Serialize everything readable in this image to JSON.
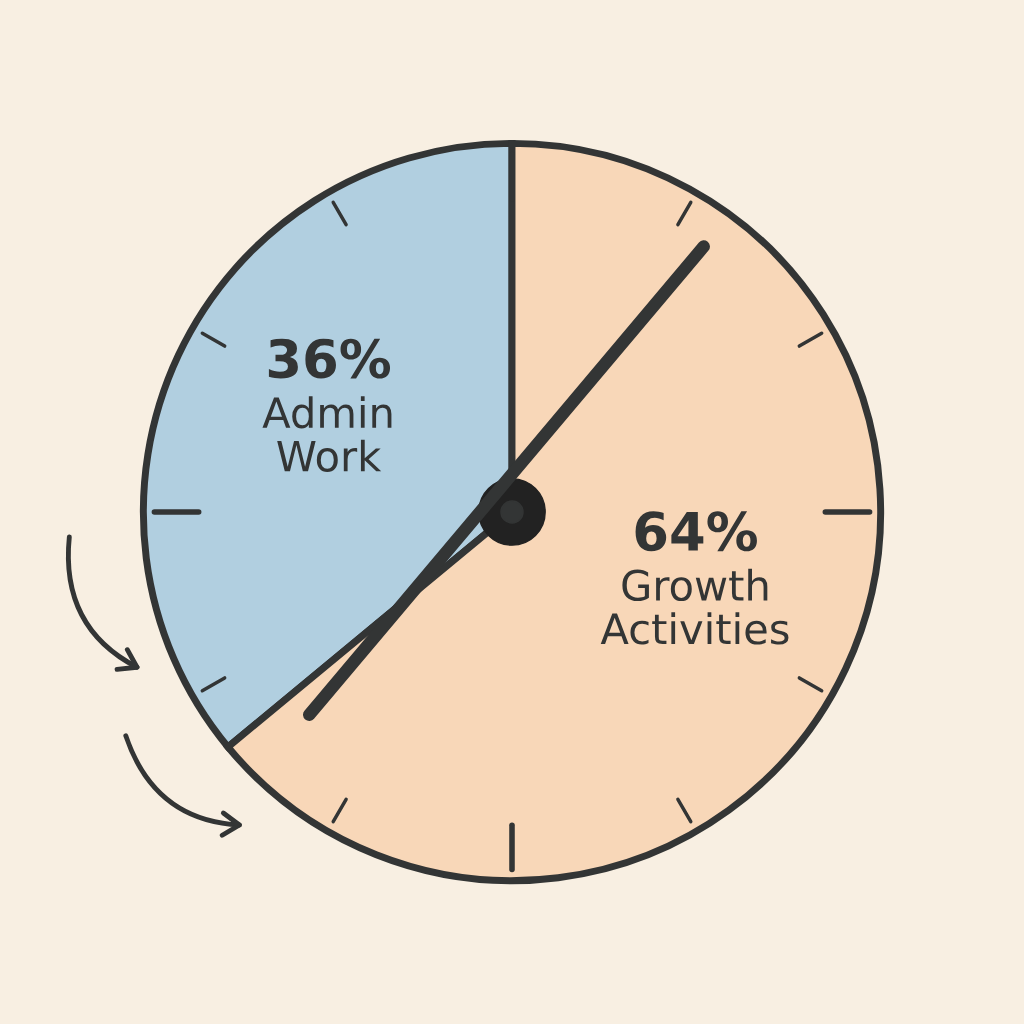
{
  "chart_data": {
    "type": "pie",
    "categories": [
      "Admin Work",
      "Growth Activities"
    ],
    "values": [
      36,
      64
    ],
    "colors": [
      "#b1cfe0",
      "#f8d7b8"
    ],
    "value_labels": [
      "36%",
      "64%"
    ]
  }
}
